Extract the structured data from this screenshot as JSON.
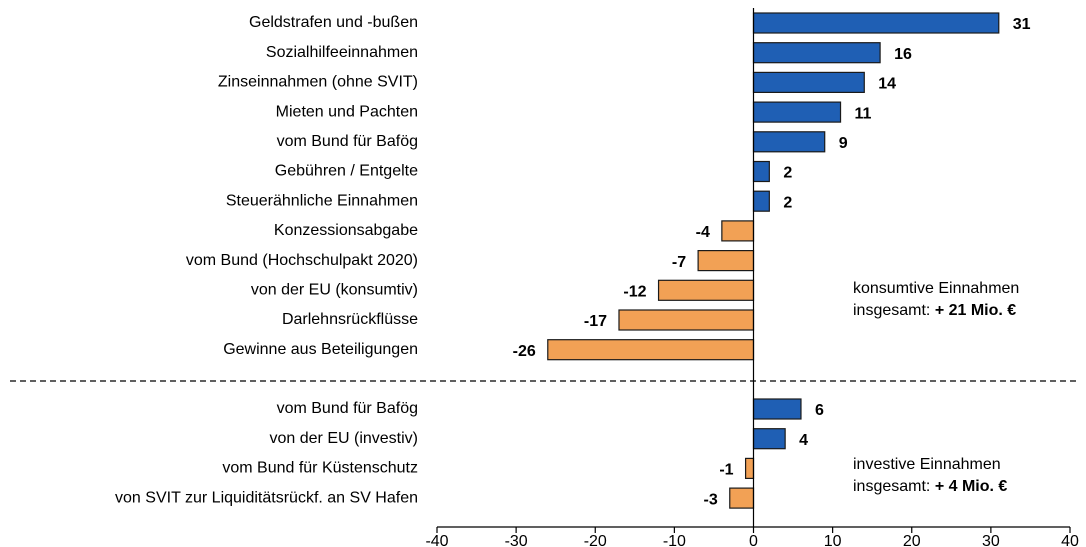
{
  "chart_data": {
    "type": "bar",
    "orientation": "horizontal",
    "categories": [
      "Geldstrafen und -bußen",
      "Sozialhilfeeinnahmen",
      "Zinseinnahmen (ohne SVIT)",
      "Mieten und Pachten",
      "vom Bund für Bafög",
      "Gebühren / Entgelte",
      "Steuerähnliche Einnahmen",
      "Konzessionsabgabe",
      "vom Bund (Hochschulpakt 2020)",
      "von der EU (konsumtiv)",
      "Darlehnsrückflüsse",
      "Gewinne aus Beteiligungen",
      "vom Bund für Bafög",
      "von der EU (investiv)",
      "vom Bund für Küstenschutz",
      "von SVIT zur Liquiditätsrückf. an SV Hafen"
    ],
    "values": [
      31,
      16,
      14,
      11,
      9,
      2,
      2,
      -4,
      -7,
      -12,
      -17,
      -26,
      6,
      4,
      -1,
      -3
    ],
    "colors": {
      "positive": "#1f5fb4",
      "negative": "#f2a155"
    },
    "xlim": [
      -40,
      40
    ],
    "xticks": [
      -40,
      -30,
      -20,
      -10,
      0,
      10,
      20,
      30,
      40
    ],
    "annotations": [
      {
        "text": "konsumtive Einnahmen",
        "prefix": "insgesamt: ",
        "total": "+ 21 Mio. €"
      },
      {
        "text": "investive Einnahmen",
        "prefix": "insgesamt: ",
        "total": "+ 4 Mio. €"
      }
    ]
  }
}
